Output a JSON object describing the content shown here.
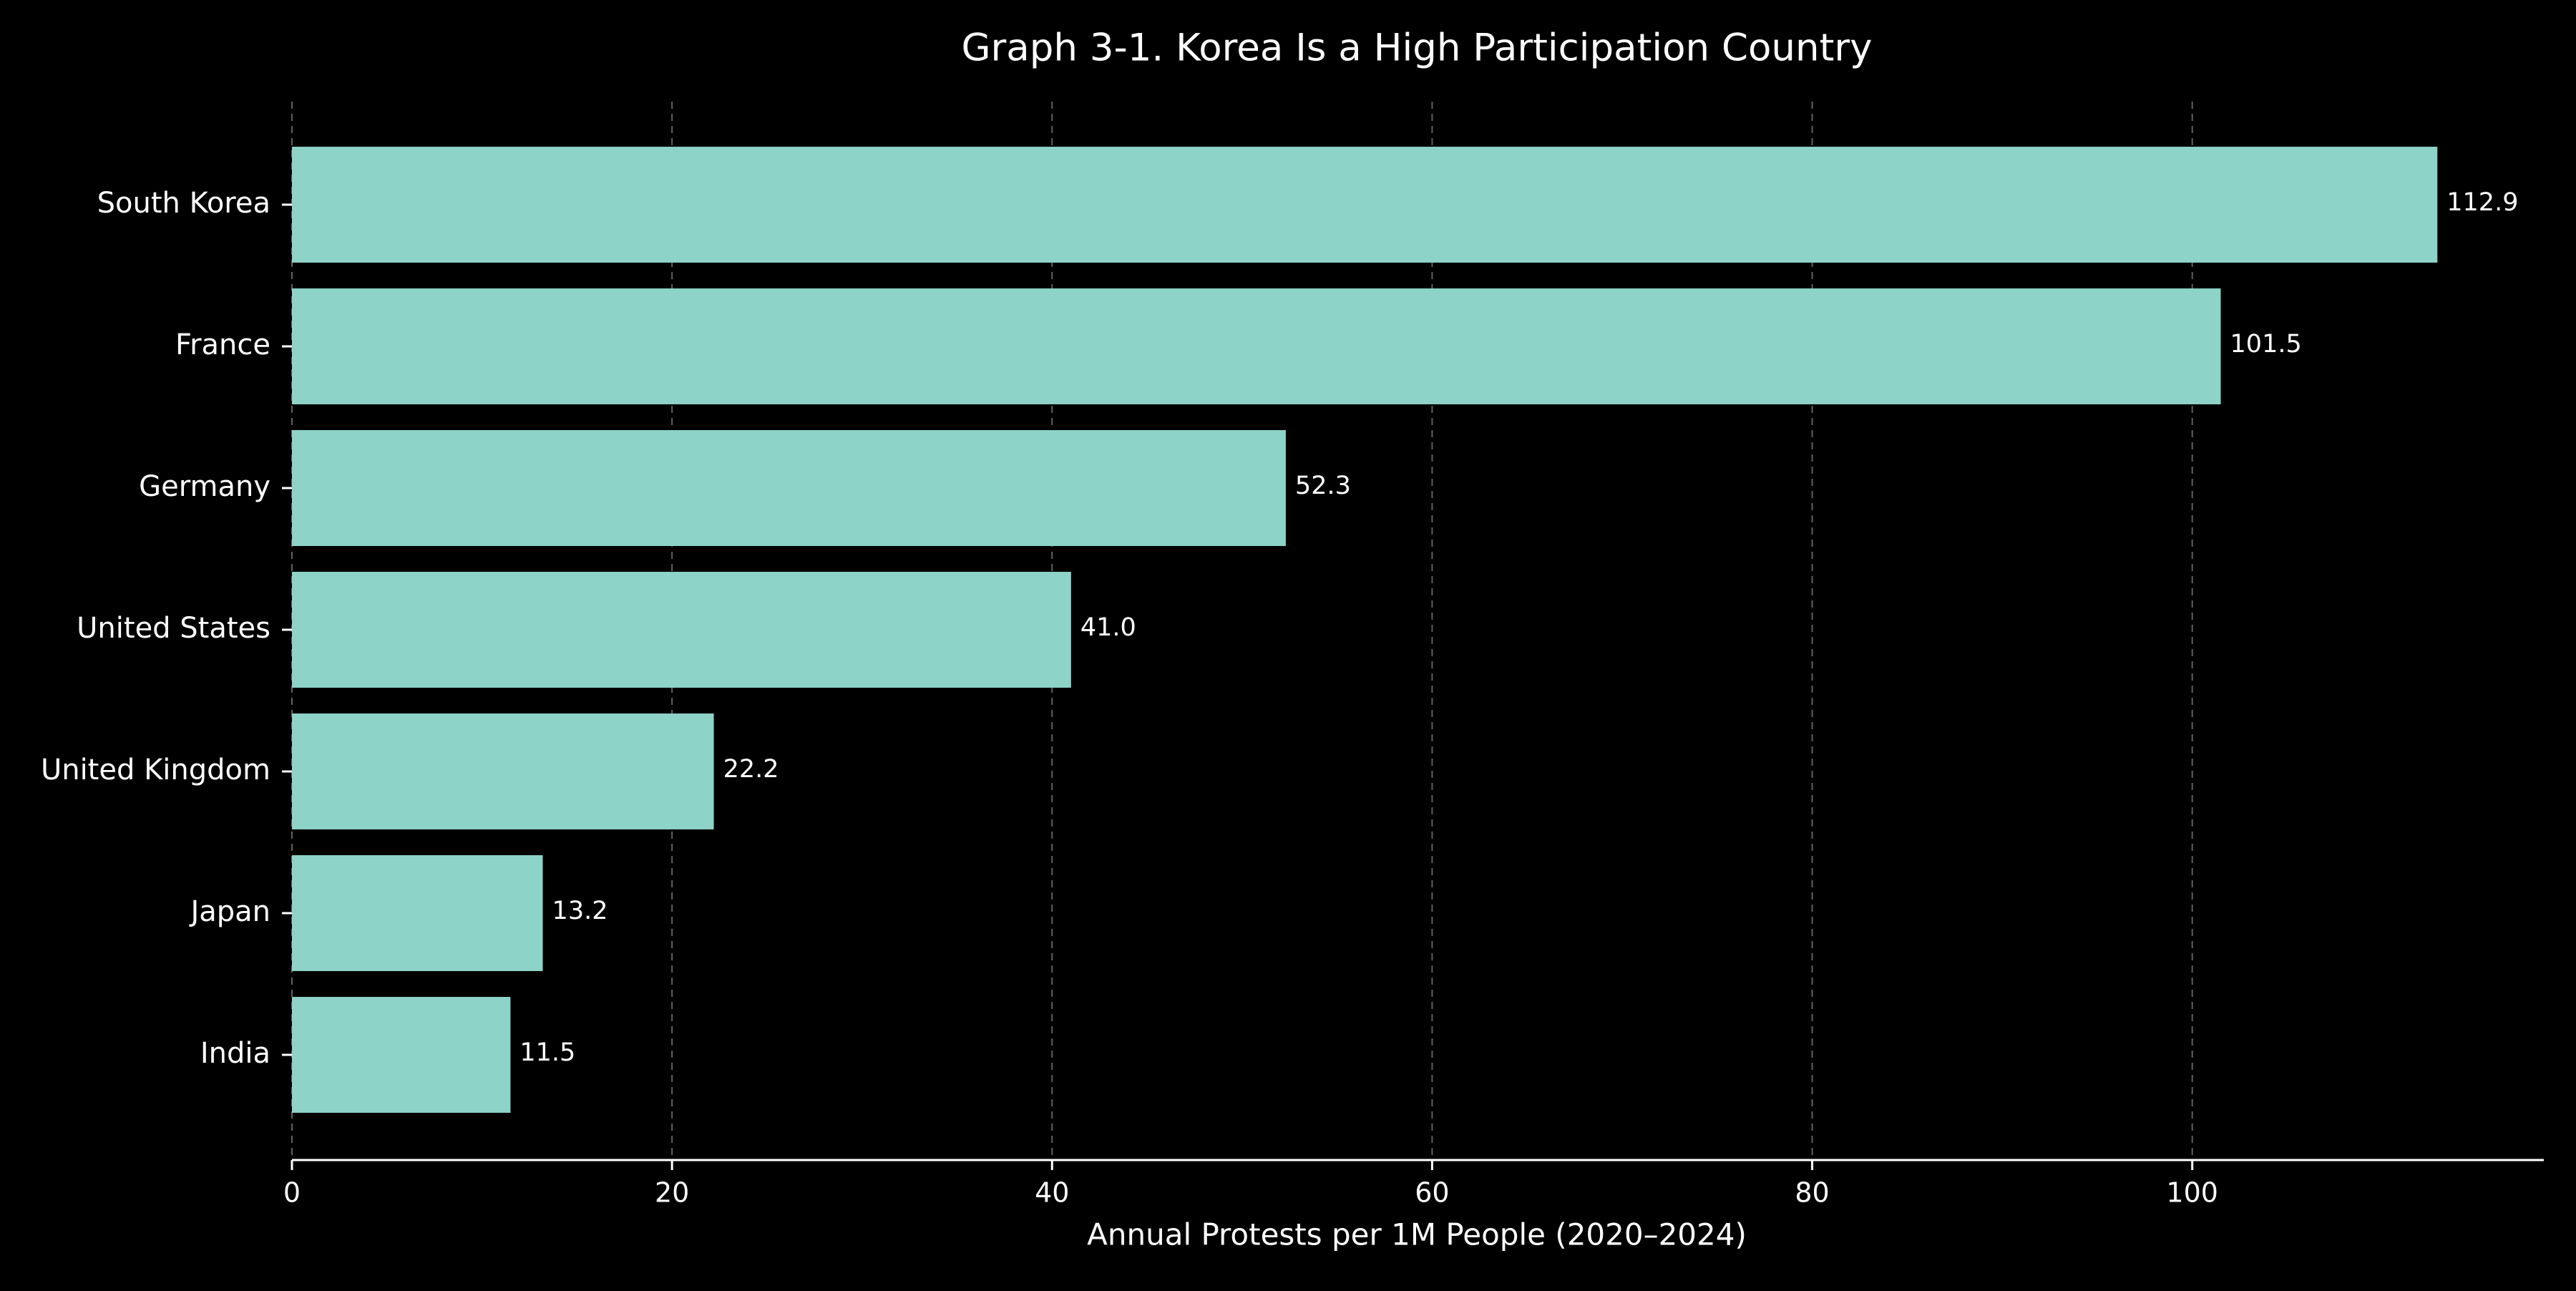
{
  "chart_data": {
    "type": "bar",
    "orientation": "horizontal",
    "title": "Graph 3-1. Korea Is a High Participation Country",
    "xlabel": "Annual Protests per 1M People (2020–2024)",
    "ylabel": "",
    "categories": [
      "South Korea",
      "France",
      "Germany",
      "United States",
      "United Kingdom",
      "Japan",
      "India"
    ],
    "values": [
      112.9,
      101.5,
      52.3,
      41.0,
      22.2,
      13.2,
      11.5
    ],
    "value_labels": [
      "112.9",
      "101.5",
      "52.3",
      "41.0",
      "22.2",
      "13.2",
      "11.5"
    ],
    "xlim": [
      0,
      118.5
    ],
    "xticks": [
      0,
      20,
      40,
      60,
      80,
      100
    ],
    "xtick_labels": [
      "0",
      "20",
      "40",
      "60",
      "80",
      "100"
    ],
    "grid": "x-axis dashed",
    "legend": "none",
    "colors": {
      "background": "#000000",
      "bar": "#8dd3c7",
      "text": "#ffffff",
      "grid": "#8a8a8a",
      "axis": "#ffffff"
    }
  }
}
